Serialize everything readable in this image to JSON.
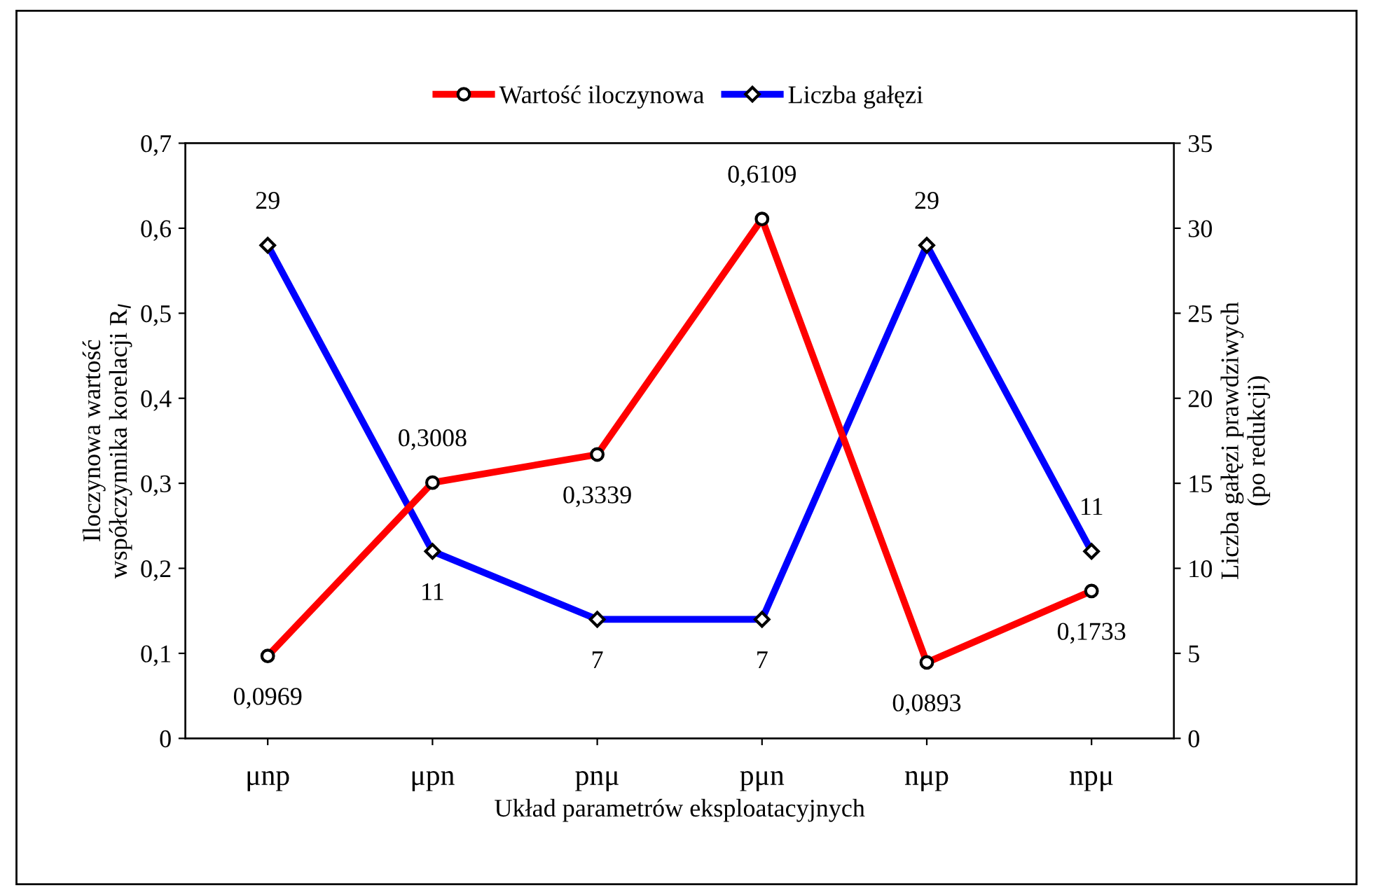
{
  "chart_data": {
    "type": "line",
    "categories": [
      "μnp",
      "μpn",
      "pnμ",
      "pμn",
      "nμp",
      "npμ"
    ],
    "xlabel": "Układ parametrów eksploatacyjnych",
    "ylabel": "Iloczynowa wartość\nwspółczynnika korelacji R$_{I}$",
    "y2label": "Liczba gałęzi prawdziwych\n(po redukcji)",
    "series": [
      {
        "name": "Wartość iloczynowa",
        "color": "#ff0000",
        "marker": "circle",
        "values": [
          0.0969,
          0.3008,
          0.3339,
          0.6109,
          0.0893,
          0.1733
        ],
        "value_labels": [
          "0,0969",
          "0,3008",
          "0,3339",
          "0,6109",
          "0,0893",
          "0,1733"
        ]
      },
      {
        "name": "Liczba gałęzi",
        "color": "#0000ff",
        "marker": "diamond",
        "axis": "y2",
        "values": [
          29,
          11,
          7,
          7,
          29,
          11
        ],
        "value_labels": [
          "29",
          "11",
          "7",
          "7",
          "29",
          "11"
        ]
      }
    ],
    "ylim": [
      0,
      0.7
    ],
    "yticks": [
      0,
      {
        "value": 0.1,
        "label": "0,1"
      },
      {
        "value": 0.2,
        "label": "0,2"
      },
      {
        "value": 0.3,
        "label": "0,3"
      },
      {
        "value": 0.4,
        "label": "0,4"
      },
      {
        "value": 0.5,
        "label": "0,5"
      },
      {
        "value": 0.6,
        "label": "0,6"
      },
      {
        "value": 0.7,
        "label": "0,7"
      }
    ],
    "y2lim": [
      0,
      35
    ],
    "y2ticks": [
      0,
      5,
      10,
      15,
      20,
      25,
      30,
      35
    ],
    "legend": "top",
    "grid": false,
    "line_style": "solid"
  }
}
